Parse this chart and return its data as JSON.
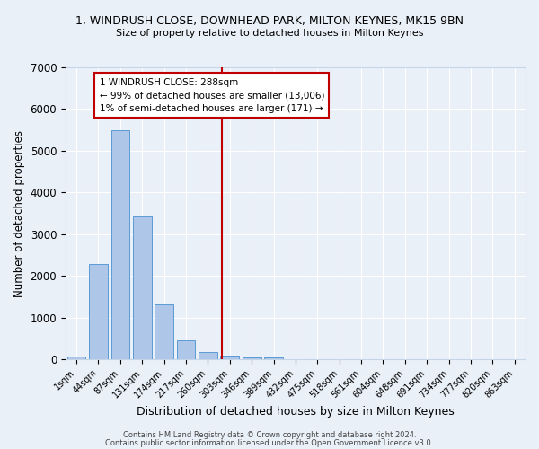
{
  "title": "1, WINDRUSH CLOSE, DOWNHEAD PARK, MILTON KEYNES, MK15 9BN",
  "subtitle": "Size of property relative to detached houses in Milton Keynes",
  "xlabel": "Distribution of detached houses by size in Milton Keynes",
  "ylabel": "Number of detached properties",
  "footnote1": "Contains HM Land Registry data © Crown copyright and database right 2024.",
  "footnote2": "Contains public sector information licensed under the Open Government Licence v3.0.",
  "bar_labels": [
    "1sqm",
    "44sqm",
    "87sqm",
    "131sqm",
    "174sqm",
    "217sqm",
    "260sqm",
    "303sqm",
    "346sqm",
    "389sqm",
    "432sqm",
    "475sqm",
    "518sqm",
    "561sqm",
    "604sqm",
    "648sqm",
    "691sqm",
    "734sqm",
    "777sqm",
    "820sqm",
    "863sqm"
  ],
  "bar_values": [
    75,
    2280,
    5500,
    3420,
    1320,
    460,
    185,
    95,
    55,
    40,
    0,
    0,
    0,
    0,
    0,
    0,
    0,
    0,
    0,
    0,
    0
  ],
  "bar_color": "#aec6e8",
  "bar_edge_color": "#5b9bd5",
  "background_color": "#eaf0f8",
  "grid_color": "#ffffff",
  "vline_color": "#c00000",
  "annotation_text": "1 WINDRUSH CLOSE: 288sqm\n← 99% of detached houses are smaller (13,006)\n1% of semi-detached houses are larger (171) →",
  "annotation_box_color": "#ffffff",
  "annotation_box_edge": "#c00000",
  "ylim": [
    0,
    7000
  ],
  "yticks": [
    0,
    1000,
    2000,
    3000,
    4000,
    5000,
    6000,
    7000
  ]
}
